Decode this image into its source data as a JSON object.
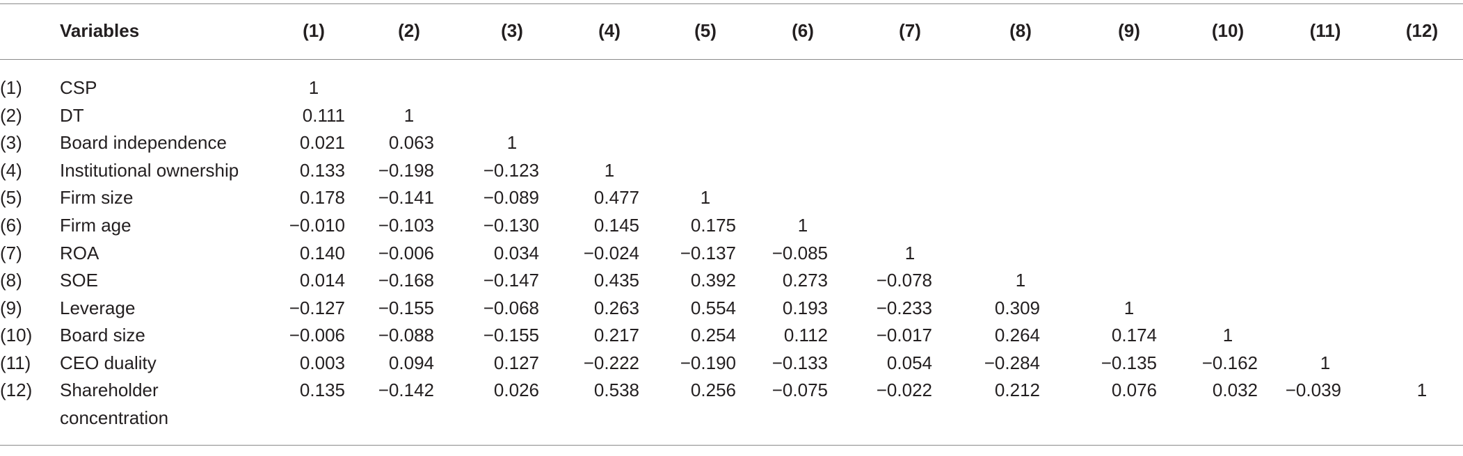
{
  "header": {
    "variables": "Variables",
    "columns": [
      "(1)",
      "(2)",
      "(3)",
      "(4)",
      "(5)",
      "(6)",
      "(7)",
      "(8)",
      "(9)",
      "(10)",
      "(11)",
      "(12)"
    ]
  },
  "rows": [
    {
      "index": "(1)",
      "name": "CSP",
      "name2": "",
      "values": [
        "1"
      ]
    },
    {
      "index": "(2)",
      "name": "DT",
      "name2": "",
      "values": [
        "0.111",
        "1"
      ]
    },
    {
      "index": "(3)",
      "name": "Board independence",
      "name2": "",
      "values": [
        "0.021",
        "0.063",
        "1"
      ]
    },
    {
      "index": "(4)",
      "name": "Institutional ownership",
      "name2": "",
      "values": [
        "0.133",
        "−0.198",
        "−0.123",
        "1"
      ]
    },
    {
      "index": "(5)",
      "name": "Firm size",
      "name2": "",
      "values": [
        "0.178",
        "−0.141",
        "−0.089",
        "0.477",
        "1"
      ]
    },
    {
      "index": "(6)",
      "name": "Firm age",
      "name2": "",
      "values": [
        "−0.010",
        "−0.103",
        "−0.130",
        "0.145",
        "0.175",
        "1"
      ]
    },
    {
      "index": "(7)",
      "name": "ROA",
      "name2": "",
      "values": [
        "0.140",
        "−0.006",
        "0.034",
        "−0.024",
        "−0.137",
        "−0.085",
        "1"
      ]
    },
    {
      "index": "(8)",
      "name": "SOE",
      "name2": "",
      "values": [
        "0.014",
        "−0.168",
        "−0.147",
        "0.435",
        "0.392",
        "0.273",
        "−0.078",
        "1"
      ]
    },
    {
      "index": "(9)",
      "name": "Leverage",
      "name2": "",
      "values": [
        "−0.127",
        "−0.155",
        "−0.068",
        "0.263",
        "0.554",
        "0.193",
        "−0.233",
        "0.309",
        "1"
      ]
    },
    {
      "index": "(10)",
      "name": "Board size",
      "name2": "",
      "values": [
        "−0.006",
        "−0.088",
        "−0.155",
        "0.217",
        "0.254",
        "0.112",
        "−0.017",
        "0.264",
        "0.174",
        "1"
      ]
    },
    {
      "index": "(11)",
      "name": "CEO duality",
      "name2": "",
      "values": [
        "0.003",
        "0.094",
        "0.127",
        "−0.222",
        "−0.190",
        "−0.133",
        "0.054",
        "−0.284",
        "−0.135",
        "−0.162",
        "1"
      ]
    },
    {
      "index": "(12)",
      "name": "Shareholder",
      "name2": "concentration",
      "values": [
        "0.135",
        "−0.142",
        "0.026",
        "0.538",
        "0.256",
        "−0.075",
        "−0.022",
        "0.212",
        "0.076",
        "0.032",
        "−0.039",
        "1"
      ]
    }
  ]
}
